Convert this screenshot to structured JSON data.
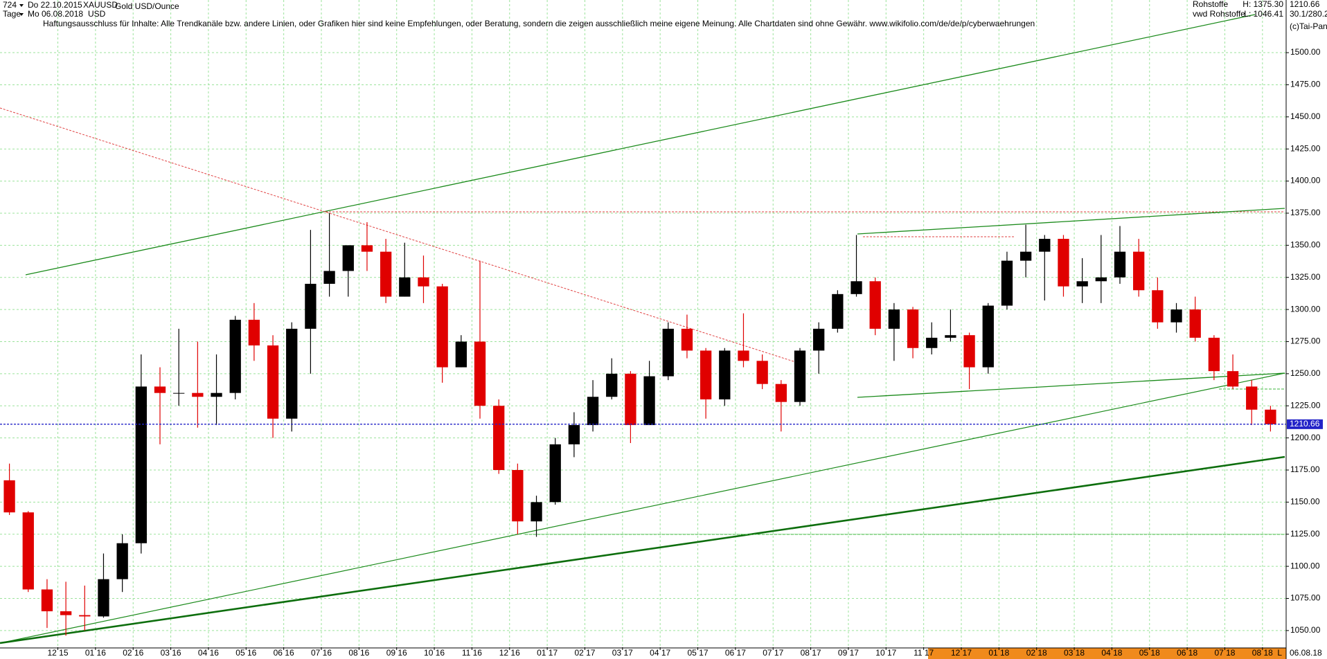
{
  "chart_data": {
    "type": "candlestick",
    "title": "Gold USD/Ounce",
    "symbol": "XAUUSD",
    "currency": "USD",
    "series_id": "724",
    "interval": "Tage",
    "start_date": "Do 22.10.2015",
    "end_date": "Mo 06.08.2018",
    "disclaimer": "Haftungsausschluss für Inhalte: Alle Trendkanäle bzw. andere Linien, oder Grafiken hier sind keine Empfehlungen, oder Beratung, sondern die zeigen ausschließlich meine eigene Meinung. Alle Chartdaten sind ohne Gewähr.  www.wikifolio.com/de/de/p/cyberwaehrungen",
    "source": "Rohstoffe",
    "feed": "vwd Rohstoffe",
    "high_label": "H: 1375.30",
    "low_label": "L: 1046.41",
    "ratio": "30.1/280.2",
    "copyright": "(c)Tai-Pan",
    "footer_date": "06.08.18",
    "footer_flag": "L",
    "up_color": "#000000",
    "down_color": "#e00000",
    "last_color": "#2323c8",
    "grid": true,
    "categories": [
      null,
      null,
      null,
      "12 15",
      null,
      "01 16",
      null,
      "02 16",
      null,
      "03 16",
      null,
      "04 16",
      null,
      "05 16",
      null,
      "06 16",
      null,
      "07 16",
      null,
      "08 16",
      null,
      "09 16",
      null,
      "10 16",
      null,
      "11 16",
      null,
      "12 16",
      null,
      "01 17",
      null,
      "02 17",
      null,
      "03 17",
      null,
      "04 17",
      null,
      "05 17",
      null,
      "06 17",
      null,
      "07 17",
      null,
      "08 17",
      null,
      "09 17",
      null,
      "10 17",
      null,
      "11 17",
      null,
      "12 17",
      null,
      "01 18",
      null,
      "02 18",
      null,
      "03 18",
      null,
      "04 18",
      null,
      "05 18",
      null,
      "06 18",
      null,
      "07 18",
      null,
      "08 18"
    ],
    "open": [
      1167,
      1142,
      1082,
      1065,
      1062,
      1061,
      1090,
      1118,
      1240,
      1235,
      1235,
      1232,
      1235,
      1292,
      1272,
      1215,
      1285,
      1320,
      1330,
      1350,
      1345,
      1310,
      1325,
      1318,
      1255,
      1275,
      1225,
      1175,
      1135,
      1150,
      1195,
      1210,
      1232,
      1250,
      1210,
      1248,
      1285,
      1268,
      1230,
      1268,
      1260,
      1242,
      1228,
      1268,
      1285,
      1312,
      1322,
      1285,
      1300,
      1270,
      1278,
      1280,
      1255,
      1303,
      1338,
      1345,
      1355,
      1318,
      1322,
      1325,
      1345,
      1315,
      1290,
      1300,
      1278,
      1252,
      1240,
      1222
    ],
    "high": [
      1180,
      1143,
      1090,
      1088,
      1085,
      1110,
      1125,
      1265,
      1255,
      1285,
      1275,
      1265,
      1295,
      1305,
      1280,
      1290,
      1362,
      1375,
      1350,
      1368,
      1355,
      1352,
      1342,
      1320,
      1280,
      1338,
      1230,
      1180,
      1155,
      1200,
      1220,
      1245,
      1262,
      1252,
      1260,
      1290,
      1296,
      1270,
      1270,
      1297,
      1265,
      1245,
      1270,
      1290,
      1315,
      1358,
      1325,
      1305,
      1302,
      1290,
      1300,
      1282,
      1305,
      1345,
      1366,
      1358,
      1358,
      1340,
      1358,
      1365,
      1355,
      1325,
      1305,
      1310,
      1280,
      1265,
      1245,
      1225
    ],
    "low": [
      1140,
      1080,
      1052,
      1046,
      1050,
      1060,
      1080,
      1110,
      1195,
      1225,
      1208,
      1210,
      1230,
      1260,
      1200,
      1205,
      1250,
      1310,
      1310,
      1330,
      1305,
      1310,
      1305,
      1243,
      1255,
      1215,
      1172,
      1125,
      1123,
      1148,
      1185,
      1205,
      1230,
      1196,
      1210,
      1245,
      1262,
      1215,
      1225,
      1255,
      1238,
      1205,
      1225,
      1250,
      1282,
      1310,
      1280,
      1260,
      1262,
      1265,
      1275,
      1238,
      1250,
      1300,
      1325,
      1307,
      1310,
      1305,
      1305,
      1320,
      1310,
      1285,
      1282,
      1275,
      1245,
      1238,
      1210,
      1205
    ],
    "close": [
      1142,
      1082,
      1065,
      1062,
      1061,
      1090,
      1118,
      1240,
      1235,
      1235,
      1232,
      1235,
      1292,
      1272,
      1215,
      1285,
      1320,
      1330,
      1350,
      1345,
      1310,
      1325,
      1318,
      1255,
      1275,
      1225,
      1175,
      1135,
      1150,
      1195,
      1210,
      1232,
      1250,
      1210,
      1248,
      1285,
      1268,
      1230,
      1268,
      1260,
      1242,
      1228,
      1268,
      1285,
      1312,
      1322,
      1285,
      1300,
      1270,
      1278,
      1280,
      1255,
      1303,
      1338,
      1345,
      1355,
      1318,
      1322,
      1325,
      1345,
      1315,
      1290,
      1300,
      1278,
      1252,
      1240,
      1222,
      1210.66
    ],
    "ylim": [
      1037,
      1541
    ],
    "yticks": [
      {
        "value": 1050,
        "label": "1050.00"
      },
      {
        "value": 1075,
        "label": "1075.00"
      },
      {
        "value": 1100,
        "label": "1100.00"
      },
      {
        "value": 1125,
        "label": "1125.00"
      },
      {
        "value": 1150,
        "label": "1150.00"
      },
      {
        "value": 1175,
        "label": "1175.00"
      },
      {
        "value": 1200,
        "label": "1200.00"
      },
      {
        "value": 1225,
        "label": "1225.00"
      },
      {
        "value": 1250,
        "label": "1250.00"
      },
      {
        "value": 1275,
        "label": "1275.00"
      },
      {
        "value": 1300,
        "label": "1300.00"
      },
      {
        "value": 1325,
        "label": "1325.00"
      },
      {
        "value": 1350,
        "label": "1350.00"
      },
      {
        "value": 1375,
        "label": "1375.00"
      },
      {
        "value": 1400,
        "label": "1400.00"
      },
      {
        "value": 1425,
        "label": "1425.00"
      },
      {
        "value": 1450,
        "label": "1450.00"
      },
      {
        "value": 1475,
        "label": "1475.00"
      },
      {
        "value": 1500,
        "label": "1500.00"
      }
    ]
  }
}
